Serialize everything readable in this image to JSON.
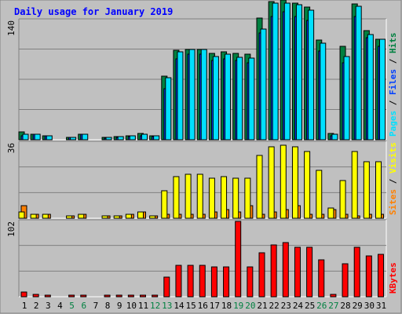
{
  "chart_data": {
    "type": "bar",
    "title": "Daily usage for January 2019",
    "categories": [
      "1",
      "2",
      "3",
      "4",
      "5",
      "6",
      "7",
      "8",
      "9",
      "10",
      "11",
      "12",
      "13",
      "14",
      "15",
      "16",
      "17",
      "18",
      "19",
      "20",
      "21",
      "22",
      "23",
      "24",
      "25",
      "26",
      "27",
      "28",
      "29",
      "30",
      "31"
    ],
    "weekend_days": [
      "5",
      "6",
      "12",
      "13",
      "19",
      "20",
      "26",
      "27"
    ],
    "colors": {
      "hits": "#008040",
      "files": "#0040ff",
      "pages": "#00e0ff",
      "visits": "#ffff00",
      "sites": "#ff8000",
      "kbytes": "#ff0000",
      "weekday_label": "#000000",
      "weekend_label": "#008040",
      "title": "#0000ff",
      "plot_bg": "#c0c0c0"
    },
    "panels": [
      {
        "id": "hits",
        "ymax_label": "140",
        "ymax": 140,
        "legend": [
          {
            "text": "Pages",
            "color": "#00e0ff"
          },
          {
            "text": " / ",
            "color": "#000000"
          },
          {
            "text": "Files",
            "color": "#0040ff"
          },
          {
            "text": " / ",
            "color": "#000000"
          },
          {
            "text": "Hits",
            "color": "#008040"
          }
        ],
        "series": [
          {
            "name": "Hits",
            "color": "#008040",
            "values": [
              9,
              6,
              5,
              0,
              3,
              6,
              0,
              3,
              4,
              5,
              7,
              5,
              75,
              105,
              106,
              106,
              101,
              103,
              101,
              100,
              143,
              162,
              164,
              160,
              156,
              117,
              7,
              110,
              159,
              128,
              118
            ]
          },
          {
            "name": "Files",
            "color": "#0040ff",
            "values": [
              5,
              6,
              5,
              0,
              3,
              6,
              0,
              2,
              3,
              4,
              5,
              4,
              60,
              95,
              100,
              100,
              93,
              95,
              93,
              90,
              125,
              145,
              150,
              145,
              140,
              104,
              5,
              90,
              145,
              120,
              110
            ]
          },
          {
            "name": "Pages",
            "color": "#00e0ff",
            "values": [
              6,
              6,
              5,
              0,
              3,
              6,
              0,
              3,
              4,
              5,
              6,
              5,
              73,
              103,
              106,
              106,
              98,
              100,
              97,
              96,
              130,
              160,
              160,
              158,
              152,
              113,
              6,
              98,
              157,
              123,
              118
            ]
          }
        ]
      },
      {
        "id": "visits",
        "ymax_label": "36",
        "ymax": 36,
        "legend": [
          {
            "text": "Sites",
            "color": "#ff8000"
          },
          {
            "text": " / ",
            "color": "#000000"
          },
          {
            "text": "Visits",
            "color": "#ffff00"
          }
        ],
        "series": [
          {
            "name": "Sites",
            "color": "#ff8000",
            "values": [
              6,
              2,
              2,
              0,
              1,
              2,
              0,
              1,
              1,
              2,
              3,
              1,
              2,
              2,
              2,
              2,
              3,
              4,
              3,
              6,
              2,
              3,
              4,
              6,
              2,
              2,
              4,
              2,
              1,
              2,
              2
            ]
          },
          {
            "name": "Visits",
            "color": "#ffff00",
            "values": [
              3,
              2,
              2,
              0,
              1,
              2,
              0,
              1,
              1,
              2,
              3,
              1,
              13,
              20,
              21,
              21,
              19,
              20,
              19,
              19,
              30,
              34,
              35,
              34,
              32,
              23,
              5,
              18,
              32,
              27,
              27
            ]
          }
        ]
      },
      {
        "id": "kbytes",
        "ymax_label": "102",
        "ymax": 102,
        "legend": [
          {
            "text": "KBytes",
            "color": "#ff0000"
          }
        ],
        "series": [
          {
            "name": "KBytes",
            "color": "#ff0000",
            "values": [
              6,
              3,
              2,
              0,
              2,
              2,
              0,
              2,
              2,
              2,
              2,
              2,
              27,
              42,
              43,
              43,
              40,
              40,
              102,
              40,
              60,
              70,
              73,
              67,
              67,
              50,
              3,
              45,
              67,
              55,
              57
            ]
          }
        ]
      }
    ]
  }
}
